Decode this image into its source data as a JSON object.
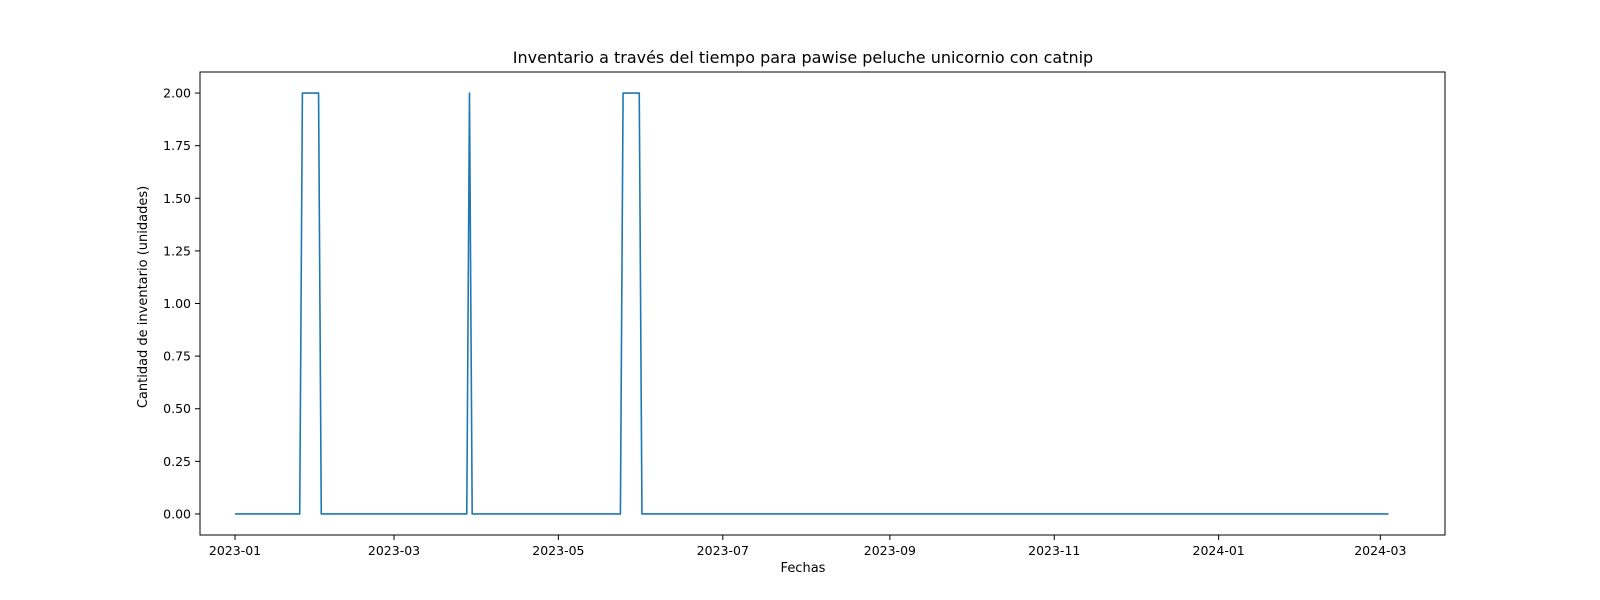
{
  "chart_data": {
    "type": "line",
    "title": "Inventario a través del tiempo para pawise peluche unicornio con catnip",
    "xlabel": "Fechas",
    "ylabel": "Cantidad de inventario (unidades)",
    "x_ticks": [
      "2023-01",
      "2023-03",
      "2023-05",
      "2023-07",
      "2023-09",
      "2023-11",
      "2024-01",
      "2024-03"
    ],
    "y_ticks": [
      "0.00",
      "0.25",
      "0.50",
      "0.75",
      "1.00",
      "1.25",
      "1.50",
      "1.75",
      "2.00"
    ],
    "xlim": [
      "2022-12-19",
      "2024-03-25"
    ],
    "ylim": [
      -0.1,
      2.1
    ],
    "grid": false,
    "color": "#1f77b4",
    "series": [
      {
        "x": [
          "2023-01-01",
          "2023-01-25",
          "2023-01-26",
          "2023-02-01",
          "2023-02-02",
          "2023-03-28",
          "2023-03-29",
          "2023-03-30",
          "2023-05-24",
          "2023-05-25",
          "2023-05-31",
          "2023-06-01",
          "2024-03-04"
        ],
        "values": [
          0,
          0,
          2,
          2,
          0,
          0,
          2,
          0,
          0,
          2,
          2,
          0,
          0
        ]
      }
    ]
  }
}
